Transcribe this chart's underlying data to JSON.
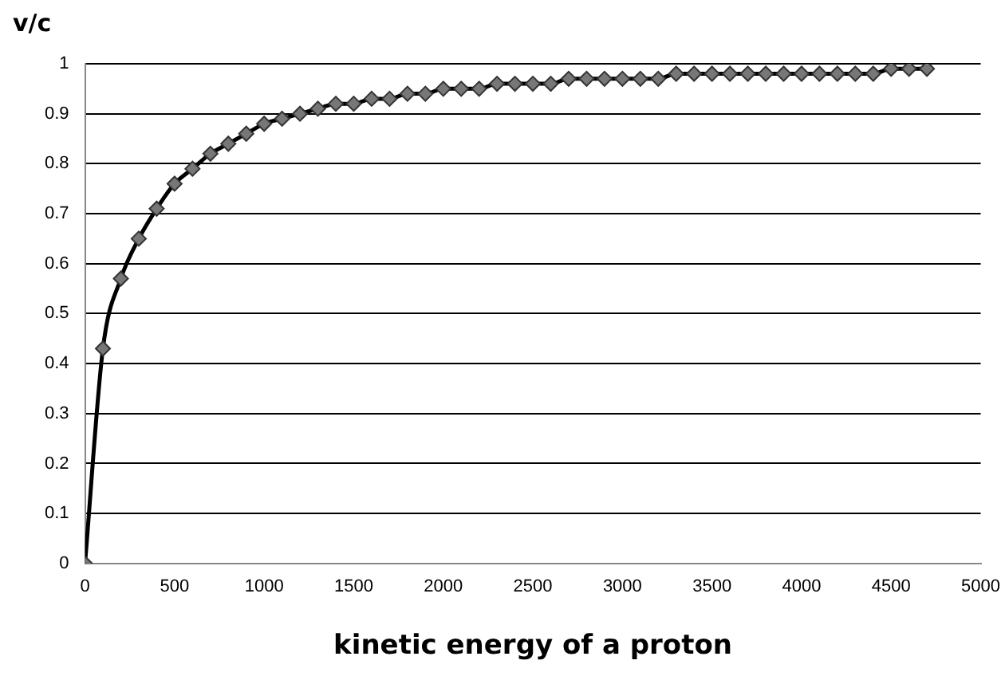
{
  "chart_data": {
    "type": "line",
    "xlabel": "kinetic energy of a proton",
    "ylabel": "v/c",
    "x": [
      0,
      100,
      200,
      300,
      400,
      500,
      600,
      700,
      800,
      900,
      1000,
      1100,
      1200,
      1300,
      1400,
      1500,
      1600,
      1700,
      1800,
      1900,
      2000,
      2100,
      2200,
      2300,
      2400,
      2500,
      2600,
      2700,
      2800,
      2900,
      3000,
      3100,
      3200,
      3300,
      3400,
      3500,
      3600,
      3700,
      3800,
      3900,
      4000,
      4100,
      4200,
      4300,
      4400,
      4500,
      4600,
      4700
    ],
    "series": [
      {
        "color": "#000000",
        "values": [
          0,
          0.43,
          0.57,
          0.65,
          0.71,
          0.76,
          0.79,
          0.82,
          0.84,
          0.86,
          0.88,
          0.89,
          0.9,
          0.91,
          0.92,
          0.92,
          0.93,
          0.93,
          0.94,
          0.94,
          0.95,
          0.95,
          0.95,
          0.96,
          0.96,
          0.96,
          0.96,
          0.97,
          0.97,
          0.97,
          0.97,
          0.97,
          0.97,
          0.98,
          0.98,
          0.98,
          0.98,
          0.98,
          0.98,
          0.98,
          0.98,
          0.98,
          0.98,
          0.98,
          0.98,
          0.99,
          0.99,
          0.99
        ]
      }
    ],
    "xlim": [
      0,
      5000
    ],
    "xticks": [
      0,
      500,
      1000,
      1500,
      2000,
      2500,
      3000,
      3500,
      4000,
      4500,
      5000
    ],
    "ylim": [
      0,
      1
    ],
    "yticks": [
      0,
      0.1,
      0.2,
      0.3,
      0.4,
      0.5,
      0.6,
      0.7,
      0.8,
      0.9,
      1
    ],
    "grid": "y",
    "marker": "diamond",
    "line_style": "solid",
    "legend": false
  }
}
